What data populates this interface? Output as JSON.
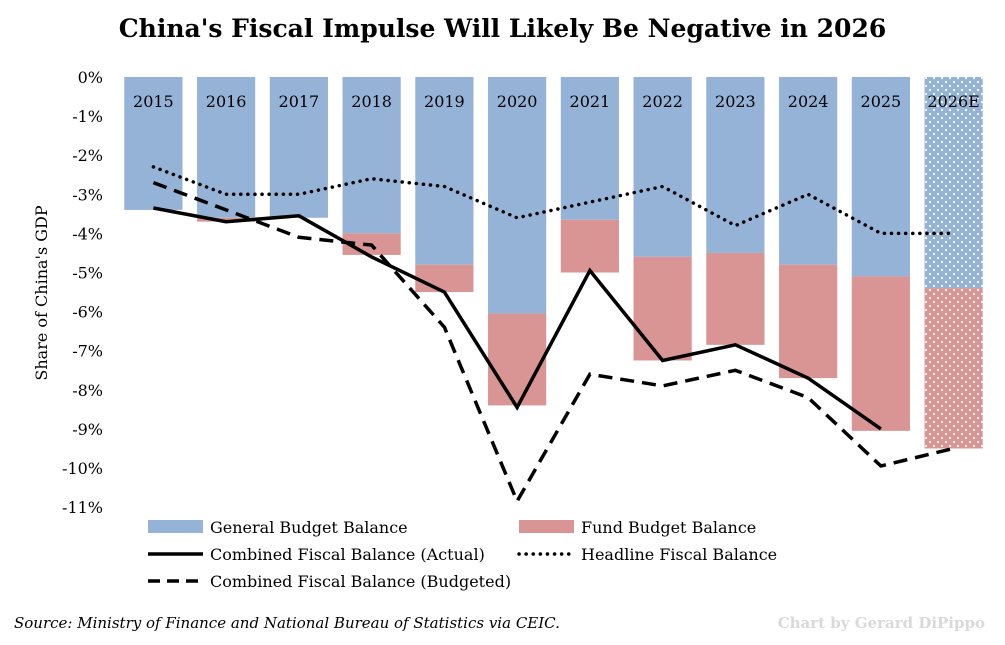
{
  "colors": {
    "general": "#95b3d7",
    "fund": "#d99594",
    "line": "#000000",
    "credit": "#d9d9d9"
  },
  "source": "Source: Ministry of Finance and National Bureau of Statistics via CEIC.",
  "credit": "Chart by Gerard DiPippo",
  "chart_data": {
    "type": "bar",
    "title": "China's Fiscal Impulse Will Likely Be Negative in 2026",
    "ylabel": "Share of China's GDP",
    "xlabel": "",
    "ylim": [
      -11,
      0
    ],
    "yticks": [
      "0%",
      "-1%",
      "-2%",
      "-3%",
      "-4%",
      "-5%",
      "-6%",
      "-7%",
      "-8%",
      "-9%",
      "-10%",
      "-11%"
    ],
    "categories": [
      "2015",
      "2016",
      "2017",
      "2018",
      "2019",
      "2020",
      "2021",
      "2022",
      "2023",
      "2024",
      "2025",
      "2026E"
    ],
    "estimate_category": "2026E",
    "stacked_bars": [
      {
        "name": "General Budget Balance",
        "key": "general",
        "values": [
          -3.4,
          -3.6,
          -3.6,
          -4.0,
          -4.8,
          -6.05,
          -3.65,
          -4.6,
          -4.5,
          -4.8,
          -5.1,
          -5.4
        ]
      },
      {
        "name": "Fund Budget Balance",
        "key": "fund",
        "values": [
          0.0,
          -0.1,
          0.0,
          -0.55,
          -0.7,
          -2.35,
          -1.35,
          -2.65,
          -2.35,
          -2.9,
          -3.95,
          -4.1
        ]
      }
    ],
    "lines": [
      {
        "name": "Combined Fiscal Balance (Actual)",
        "style": "solid",
        "values": [
          -3.35,
          -3.7,
          -3.55,
          -4.6,
          -5.5,
          -8.45,
          -4.95,
          -7.25,
          -6.85,
          -7.7,
          -9.0,
          null
        ]
      },
      {
        "name": "Headline Fiscal Balance",
        "style": "dotted",
        "values": [
          -2.3,
          -3.0,
          -3.0,
          -2.6,
          -2.8,
          -3.6,
          -3.2,
          -2.8,
          -3.8,
          -3.0,
          -4.0,
          -4.0
        ]
      },
      {
        "name": "Combined Fiscal Balance (Budgeted)",
        "style": "dashed",
        "values": [
          -2.7,
          -3.4,
          -4.1,
          -4.3,
          -6.4,
          -10.85,
          -7.6,
          -7.9,
          -7.5,
          -8.2,
          -9.95,
          -9.5
        ]
      }
    ],
    "legend": [
      {
        "label": "General Budget Balance",
        "kind": "box",
        "key": "general"
      },
      {
        "label": "Fund Budget Balance",
        "kind": "box",
        "key": "fund"
      },
      {
        "label": "Combined Fiscal Balance (Actual)",
        "kind": "line",
        "style": "solid"
      },
      {
        "label": "Headline Fiscal Balance",
        "kind": "line",
        "style": "dotted"
      },
      {
        "label": "Combined Fiscal Balance (Budgeted)",
        "kind": "line",
        "style": "dashed"
      }
    ],
    "legend_position": "bottom",
    "grid": false
  }
}
